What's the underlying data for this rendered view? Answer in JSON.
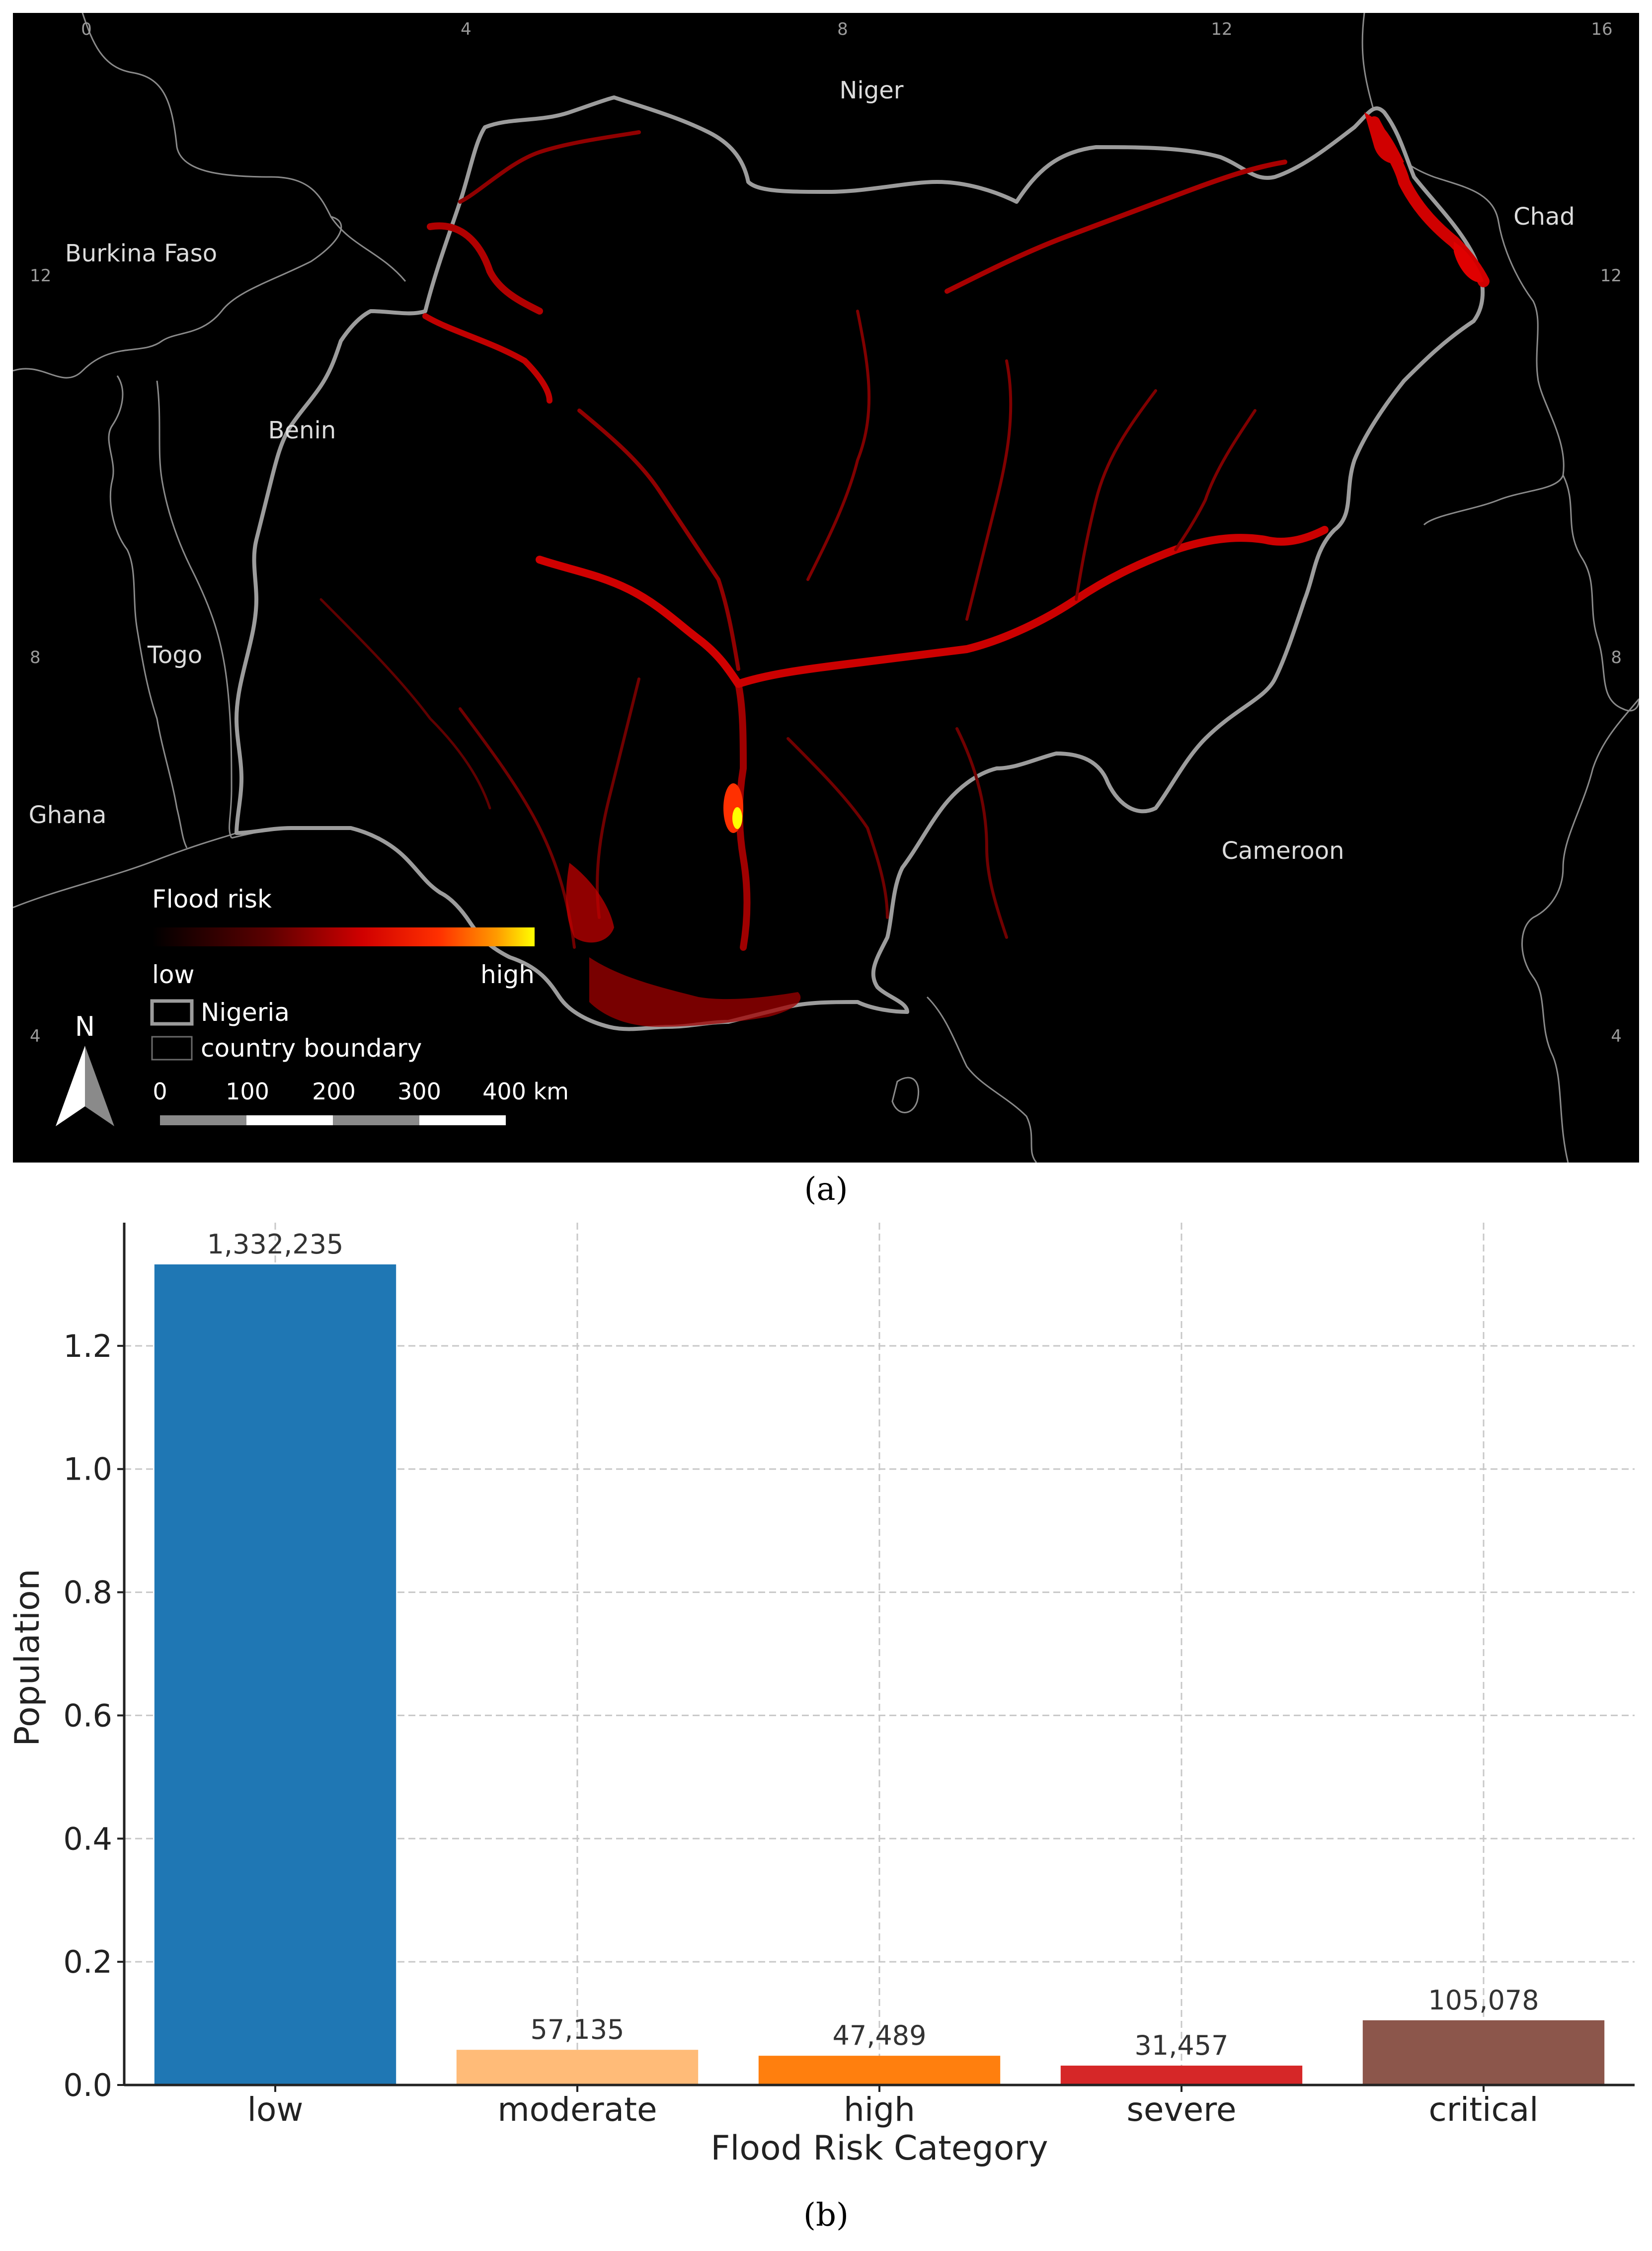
{
  "map": {
    "labels": {
      "niger": "Niger",
      "chad": "Chad",
      "burkina_faso": "Burkina Faso",
      "benin": "Benin",
      "togo": "Togo",
      "ghana": "Ghana",
      "cameroon": "Cameroon"
    },
    "graticule": {
      "top_ticks": [
        "0",
        "4",
        "8",
        "12",
        "16"
      ],
      "left_ticks": [
        "12",
        "8",
        "4"
      ],
      "right_ticks": [
        "12",
        "8",
        "4"
      ]
    },
    "legend": {
      "title": "Flood risk",
      "low": "low",
      "high": "high",
      "nigeria": "Nigeria",
      "country_boundary": "country boundary",
      "colors": [
        "#000000",
        "#5a0000",
        "#c00000",
        "#ff2000",
        "#ff8a00",
        "#ffff00"
      ]
    },
    "north_arrow": "N",
    "scale_bar": [
      "0",
      "100",
      "200",
      "300",
      "400 km"
    ],
    "caption": "(a)"
  },
  "chart_data": {
    "type": "bar",
    "categories": [
      "low",
      "moderate",
      "high",
      "severe",
      "critical"
    ],
    "values": [
      1332235,
      57135,
      47489,
      31457,
      105078
    ],
    "value_labels": [
      "1,332,235",
      "57,135",
      "47,489",
      "31,457",
      "105,078"
    ],
    "colors": [
      "#1f77b4",
      "#ffbb78",
      "#ff7f0e",
      "#d62728",
      "#8c564b"
    ],
    "xlabel": "Flood Risk Category",
    "ylabel": "Population",
    "ylim": [
      0,
      1.4
    ],
    "y_ticks": [
      0.0,
      0.2,
      0.4,
      0.6,
      0.8,
      1.0,
      1.2
    ],
    "y_tick_labels": [
      "0.0",
      "0.2",
      "0.4",
      "0.6",
      "0.8",
      "1.0",
      "1.2"
    ],
    "y_scale_divisor": 1000000,
    "grid": true
  },
  "chart_caption": "(b)"
}
